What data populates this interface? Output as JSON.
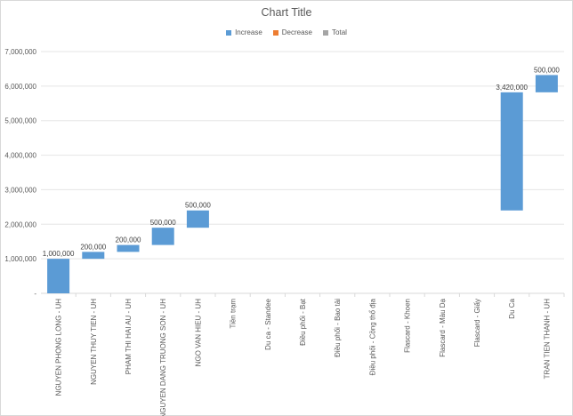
{
  "chart_data": {
    "type": "bar",
    "subtype": "waterfall",
    "title": "Chart Title",
    "legend": {
      "position": "top",
      "entries": [
        {
          "name": "Increase",
          "color": "#5b9bd5"
        },
        {
          "name": "Decrease",
          "color": "#ed7d31"
        },
        {
          "name": "Total",
          "color": "#a5a5a5"
        }
      ]
    },
    "ylim": [
      0,
      7000000
    ],
    "yticks": [
      "-",
      "1,000,000",
      "2,000,000",
      "3,000,000",
      "4,000,000",
      "5,000,000",
      "6,000,000",
      "7,000,000"
    ],
    "grid": true,
    "categories": [
      "NGUYEN PHONG LONG - UH",
      "NGUYEN THUY TIEN - UH",
      "PHAM THI HAI AU - UH",
      "NGUYEN DANG TRUONG SON - UH",
      "NGO VAN HIEU - UH",
      "Tiền trạm",
      "Du ca - Standee",
      "Điều phối - Bạt",
      "Điều phối - Bao tải",
      "Điều phối - Cồng thổ địa",
      "Flascard - Khoen",
      "Flascard - Màu Dạ",
      "Flascard - Giấy",
      "Du Ca",
      "TRAN TIEN THANH - UH"
    ],
    "bars": [
      {
        "start": 0,
        "end": 1000000,
        "label": "1,000,000",
        "kind": "Increase"
      },
      {
        "start": 1000000,
        "end": 1200000,
        "label": "200,000",
        "kind": "Increase"
      },
      {
        "start": 1200000,
        "end": 1400000,
        "label": "200,000",
        "kind": "Increase"
      },
      {
        "start": 1400000,
        "end": 1900000,
        "label": "500,000",
        "kind": "Increase"
      },
      {
        "start": 1900000,
        "end": 2400000,
        "label": "500,000",
        "kind": "Increase"
      },
      null,
      null,
      null,
      null,
      null,
      null,
      null,
      null,
      {
        "start": 2400000,
        "end": 5820000,
        "label": "3,420,000",
        "kind": "Increase"
      },
      {
        "start": 5820000,
        "end": 6320000,
        "label": "500,000",
        "kind": "Increase"
      }
    ],
    "colors": {
      "axis": "#d9d9d9",
      "grid": "#e5e5e5",
      "text": "#595959"
    }
  }
}
